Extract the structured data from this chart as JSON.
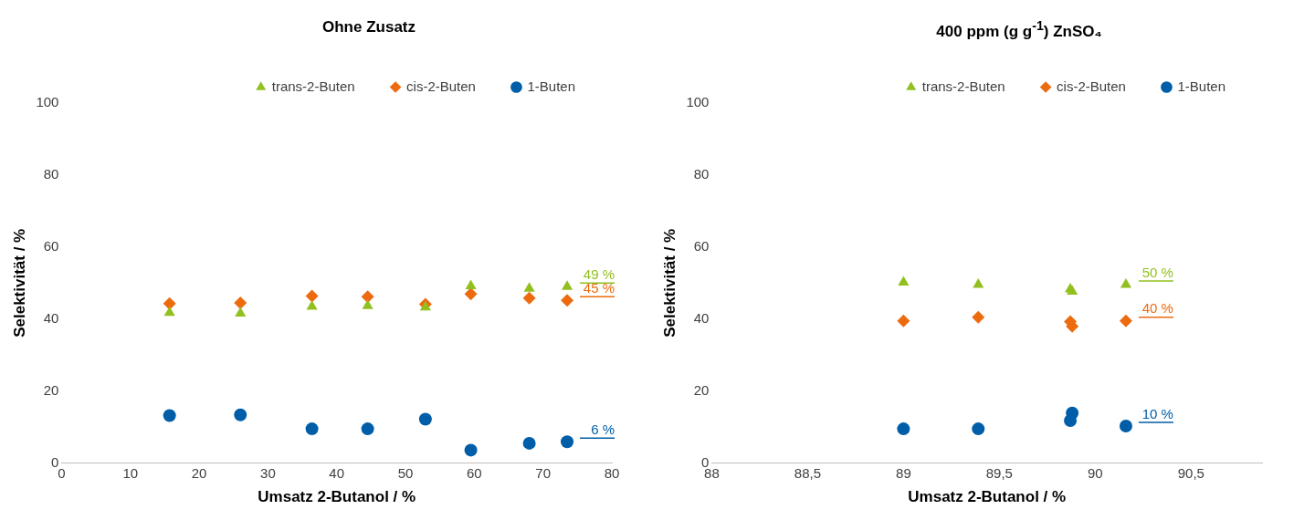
{
  "chart_data": [
    {
      "type": "scatter",
      "title": "Ohne Zusatz",
      "xlabel": "Umsatz 2-Butanol / %",
      "ylabel": "Selektivität / %",
      "xlim": [
        0,
        80
      ],
      "xticks": [
        0,
        10,
        20,
        30,
        40,
        50,
        60,
        70,
        80
      ],
      "ylim": [
        0,
        100
      ],
      "yticks": [
        0,
        20,
        40,
        60,
        80,
        100
      ],
      "grid": false,
      "legend": "top",
      "x": [
        15.7,
        26,
        36.4,
        44.5,
        52.9,
        59.5,
        68,
        73.5
      ],
      "series": [
        {
          "name": "trans-2-Buten",
          "color": "#92c01f",
          "marker": "triangle",
          "values": [
            41.8,
            41.6,
            43.5,
            43.7,
            43.3,
            49.2,
            48.5,
            49
          ]
        },
        {
          "name": "cis-2-Buten",
          "color": "#ed6b0f",
          "marker": "diamond",
          "values": [
            44.3,
            44.5,
            46.4,
            46.2,
            44.1,
            47,
            45.8,
            45.2
          ]
        },
        {
          "name": "1-Buten",
          "color": "#005ea8",
          "marker": "circle",
          "values": [
            13.2,
            13.4,
            9.5,
            9.5,
            12.2,
            3.6,
            5.5,
            5.9
          ]
        }
      ],
      "annotations": [
        "49 %",
        "45 %",
        "6 %"
      ]
    },
    {
      "type": "scatter",
      "title": "400 ppm (g g$^{-1}$) ZnSO₄",
      "xlabel": "Umsatz 2-Butanol / %",
      "ylabel": "Selektivität / %",
      "xlim": [
        88,
        90.87
      ],
      "xticks": [
        {
          "value": 88,
          "label": "88"
        },
        {
          "value": 88.5,
          "label": "88,5"
        },
        {
          "value": 89,
          "label": "89"
        },
        {
          "value": 89.5,
          "label": "89,5"
        },
        {
          "value": 90,
          "label": "90"
        },
        {
          "value": 90.5,
          "label": "90,5"
        }
      ],
      "ylim": [
        0,
        100
      ],
      "yticks": [
        0,
        20,
        40,
        60,
        80,
        100
      ],
      "grid": false,
      "legend": "top",
      "x": [
        89.0,
        89.39,
        89.87,
        89.88,
        90.16
      ],
      "series": [
        {
          "name": "trans-2-Buten",
          "color": "#92c01f",
          "marker": "triangle",
          "values": [
            50.2,
            49.6,
            48.3,
            47.7,
            49.6
          ]
        },
        {
          "name": "cis-2-Buten",
          "color": "#ed6b0f",
          "marker": "diamond",
          "values": [
            39.5,
            40.5,
            39.3,
            38,
            39.5
          ]
        },
        {
          "name": "1-Buten",
          "color": "#005ea8",
          "marker": "circle",
          "values": [
            9.5,
            9.5,
            11.8,
            13.9,
            10.3
          ]
        }
      ],
      "annotations": [
        "50 %",
        "40 %",
        "10 %"
      ]
    }
  ]
}
